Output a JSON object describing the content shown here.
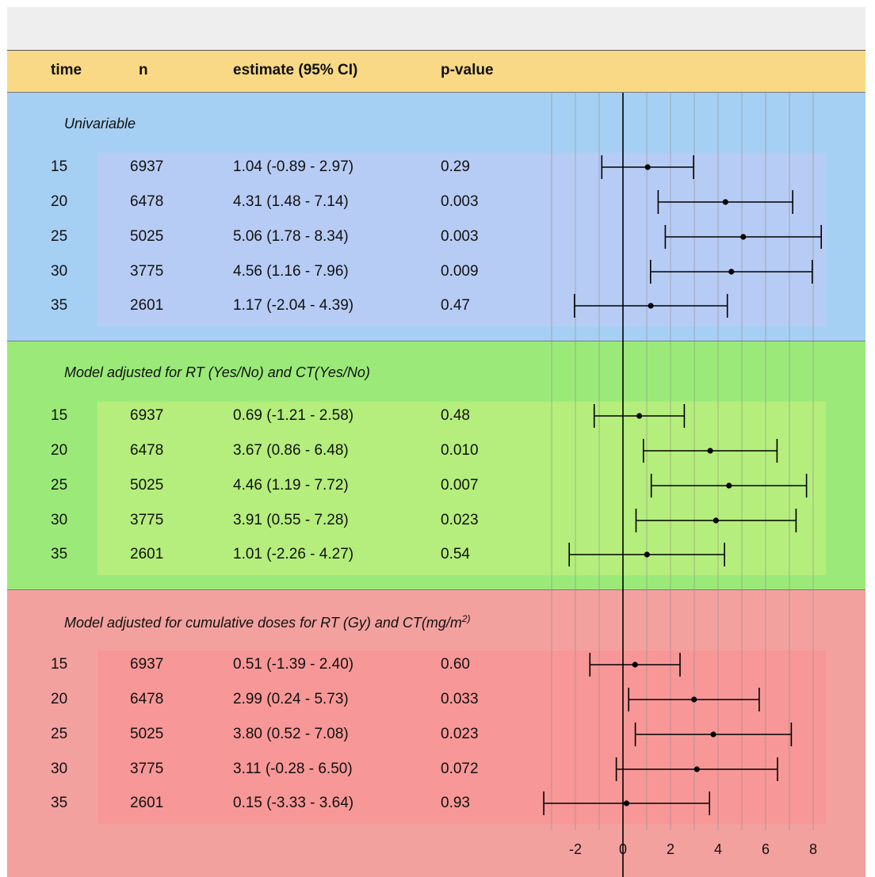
{
  "header": {
    "time": "time",
    "n": "n",
    "estimate": "estimate (95% CI)",
    "pvalue": "p-value"
  },
  "sections": [
    {
      "title": "Univariable",
      "rows": [
        {
          "time": "15",
          "n": "6937",
          "estimate": "1.04 (-0.89 -  2.97)",
          "pvalue": "0.29"
        },
        {
          "time": "20",
          "n": "6478",
          "estimate": "4.31 (1.48 -  7.14)",
          "pvalue": "0.003"
        },
        {
          "time": "25",
          "n": "5025",
          "estimate": "5.06 (1.78 -  8.34)",
          "pvalue": "0.003"
        },
        {
          "time": "30",
          "n": "3775",
          "estimate": "4.56 (1.16 -  7.96)",
          "pvalue": "0.009"
        },
        {
          "time": "35",
          "n": "2601",
          "estimate": "1.17 (-2.04 -  4.39)",
          "pvalue": "0.47"
        }
      ]
    },
    {
      "title": "Model adjusted for RT (Yes/No) and CT(Yes/No)",
      "rows": [
        {
          "time": "15",
          "n": "6937",
          "estimate": "0.69 (-1.21 -  2.58)",
          "pvalue": "0.48"
        },
        {
          "time": "20",
          "n": "6478",
          "estimate": "3.67 (0.86 -  6.48)",
          "pvalue": "0.010"
        },
        {
          "time": "25",
          "n": "5025",
          "estimate": "4.46 (1.19 -  7.72)",
          "pvalue": "0.007"
        },
        {
          "time": "30",
          "n": "3775",
          "estimate": "3.91 (0.55 -  7.28)",
          "pvalue": "0.023"
        },
        {
          "time": "35",
          "n": "2601",
          "estimate": "1.01 (-2.26 -  4.27)",
          "pvalue": "0.54"
        }
      ]
    },
    {
      "title": "Model adjusted for cumulative doses for RT (Gy) and CT(mg/m",
      "title_sup": "2)",
      "rows": [
        {
          "time": "15",
          "n": "6937",
          "estimate": "0.51 (-1.39 -  2.40)",
          "pvalue": "0.60"
        },
        {
          "time": "20",
          "n": "6478",
          "estimate": "2.99 (0.24 -  5.73)",
          "pvalue": "0.033"
        },
        {
          "time": "25",
          "n": "5025",
          "estimate": "3.80 (0.52 -  7.08)",
          "pvalue": "0.023"
        },
        {
          "time": "30",
          "n": "3775",
          "estimate": "3.11 (-0.28 -  6.50)",
          "pvalue": "0.072"
        },
        {
          "time": "35",
          "n": "2601",
          "estimate": "0.15 (-3.33 -  3.64)",
          "pvalue": "0.93"
        }
      ]
    }
  ],
  "colors": {
    "header": "#f9d985",
    "univariable": "#a6d0f3",
    "model1": "#9bea79",
    "model2": "#f3a19f"
  },
  "chart_data": {
    "type": "forest",
    "xlim": [
      -3,
      8.5
    ],
    "xticks": [
      -2,
      0,
      2,
      4,
      6,
      8
    ],
    "reference_line": 0,
    "grid": "vertical lines at each integer",
    "groups": [
      {
        "name": "Univariable",
        "estimates": [
          1.04,
          4.31,
          5.06,
          4.56,
          1.17
        ],
        "lower": [
          -0.89,
          1.48,
          1.78,
          1.16,
          -2.04
        ],
        "upper": [
          2.97,
          7.14,
          8.34,
          7.96,
          4.39
        ]
      },
      {
        "name": "Model adjusted for RT (Yes/No) and CT(Yes/No)",
        "estimates": [
          0.69,
          3.67,
          4.46,
          3.91,
          1.01
        ],
        "lower": [
          -1.21,
          0.86,
          1.19,
          0.55,
          -2.26
        ],
        "upper": [
          2.58,
          6.48,
          7.72,
          7.28,
          4.27
        ]
      },
      {
        "name": "Model adjusted for cumulative doses for RT (Gy) and CT(mg/m2)",
        "estimates": [
          0.51,
          2.99,
          3.8,
          3.11,
          0.15
        ],
        "lower": [
          -1.39,
          0.24,
          0.52,
          -0.28,
          -3.33
        ],
        "upper": [
          2.4,
          5.73,
          7.08,
          6.5,
          3.64
        ]
      }
    ]
  }
}
